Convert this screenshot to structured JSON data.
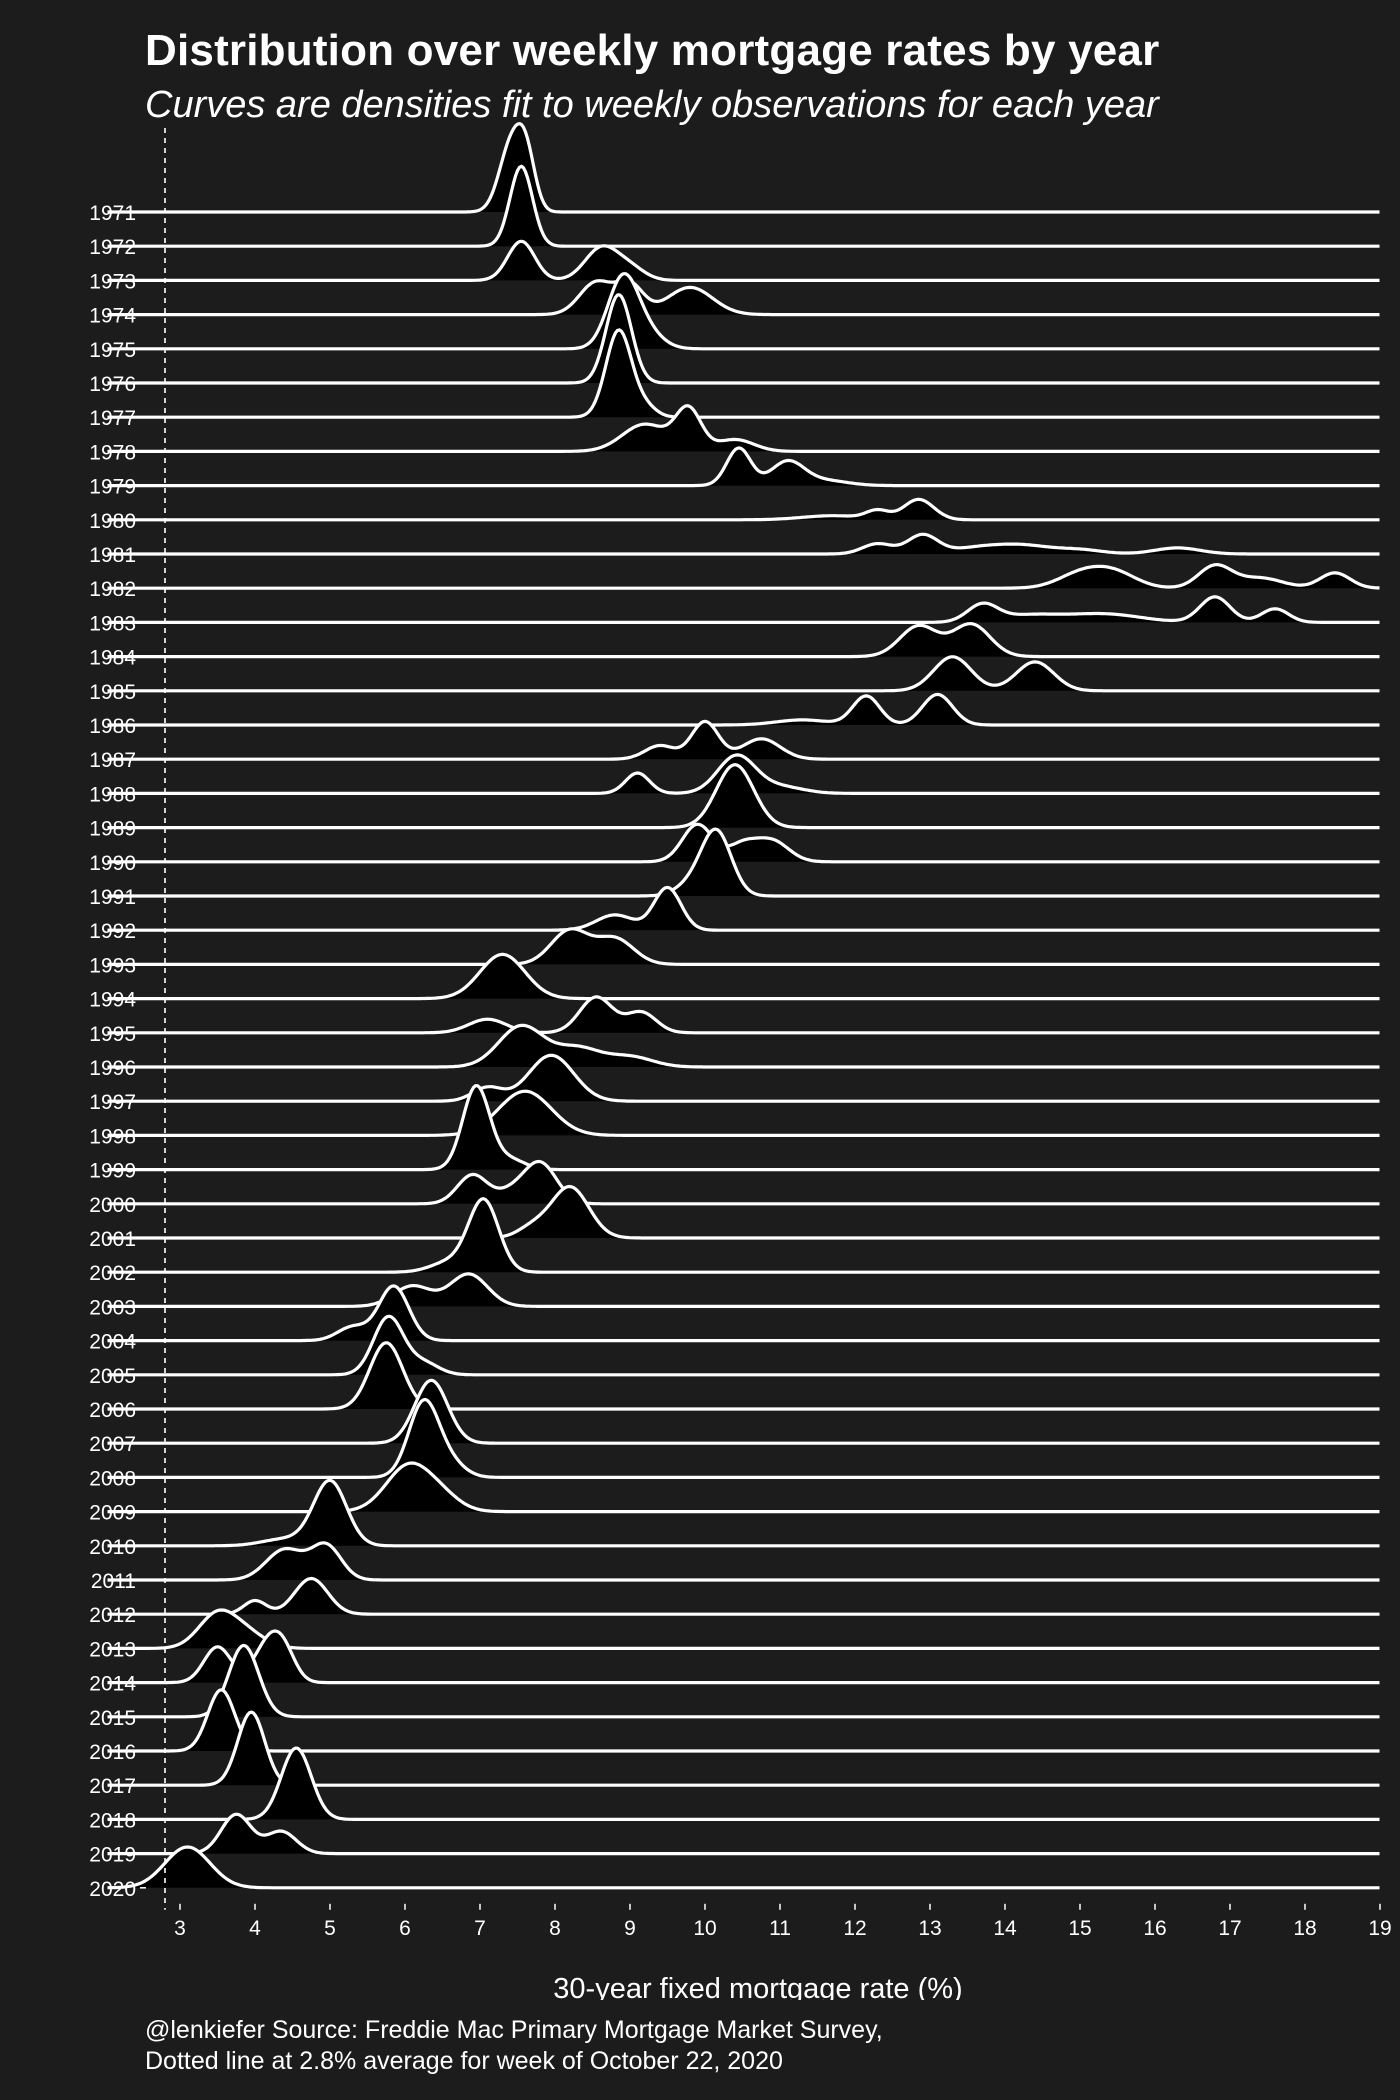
{
  "title": "Distribution over weekly mortgage rates by year",
  "subtitle": "Curves are densities fit to weekly observations for each year",
  "footer": {
    "line1": "@lenkiefer Source: Freddie Mac Primary Mortgage Market Survey,",
    "line2": "Dotted line at 2.8% average for week of October 22, 2020"
  },
  "colors": {
    "background": "#1c1c1c",
    "line": "#ffffff",
    "fill": "#000000"
  },
  "chart_data": {
    "type": "ridgeline",
    "xlabel": "30-year fixed mortgage rate (%)",
    "ylabel": "",
    "xlim": [
      2.5,
      19
    ],
    "xticks": [
      3,
      4,
      5,
      6,
      7,
      8,
      9,
      10,
      11,
      12,
      13,
      14,
      15,
      16,
      17,
      18,
      19
    ],
    "reference_line": {
      "x": 2.8,
      "style": "dotted"
    },
    "years": [
      "1971",
      "1972",
      "1973",
      "1974",
      "1975",
      "1976",
      "1977",
      "1978",
      "1979",
      "1980",
      "1981",
      "1982",
      "1983",
      "1984",
      "1985",
      "1986",
      "1987",
      "1988",
      "1989",
      "1990",
      "1991",
      "1992",
      "1993",
      "1994",
      "1995",
      "1996",
      "1997",
      "1998",
      "1999",
      "2000",
      "2001",
      "2002",
      "2003",
      "2004",
      "2005",
      "2006",
      "2007",
      "2008",
      "2009",
      "2010",
      "2011",
      "2012",
      "2013",
      "2014",
      "2015",
      "2016",
      "2017",
      "2018",
      "2019",
      "2020"
    ],
    "series": [
      {
        "year": "1971",
        "peaks": [
          {
            "center": 7.42,
            "sd": 0.16,
            "height": 2.0
          },
          {
            "center": 7.62,
            "sd": 0.12,
            "height": 1.35
          }
        ]
      },
      {
        "year": "1972",
        "peaks": [
          {
            "center": 7.55,
            "sd": 0.15,
            "height": 2.35
          }
        ]
      },
      {
        "year": "1973",
        "peaks": [
          {
            "center": 7.55,
            "sd": 0.18,
            "height": 1.15
          },
          {
            "center": 8.62,
            "sd": 0.22,
            "height": 0.95
          },
          {
            "center": 9.0,
            "sd": 0.2,
            "height": 0.35
          }
        ]
      },
      {
        "year": "1974",
        "peaks": [
          {
            "center": 8.55,
            "sd": 0.22,
            "height": 0.95
          },
          {
            "center": 9.0,
            "sd": 0.18,
            "height": 0.85
          },
          {
            "center": 9.8,
            "sd": 0.3,
            "height": 0.8
          }
        ]
      },
      {
        "year": "1975",
        "peaks": [
          {
            "center": 8.9,
            "sd": 0.2,
            "height": 2.0
          },
          {
            "center": 9.2,
            "sd": 0.22,
            "height": 0.5
          }
        ]
      },
      {
        "year": "1976",
        "peaks": [
          {
            "center": 8.85,
            "sd": 0.17,
            "height": 2.6
          }
        ]
      },
      {
        "year": "1977",
        "peaks": [
          {
            "center": 8.85,
            "sd": 0.17,
            "height": 2.55
          },
          {
            "center": 9.2,
            "sd": 0.15,
            "height": 0.3
          }
        ]
      },
      {
        "year": "1978",
        "peaks": [
          {
            "center": 9.2,
            "sd": 0.3,
            "height": 0.8
          },
          {
            "center": 9.78,
            "sd": 0.17,
            "height": 1.2
          },
          {
            "center": 10.4,
            "sd": 0.25,
            "height": 0.35
          }
        ]
      },
      {
        "year": "1979",
        "peaks": [
          {
            "center": 10.45,
            "sd": 0.16,
            "height": 1.1
          },
          {
            "center": 11.1,
            "sd": 0.22,
            "height": 0.7
          },
          {
            "center": 11.6,
            "sd": 0.3,
            "height": 0.15
          }
        ]
      },
      {
        "year": "1980",
        "peaks": [
          {
            "center": 12.3,
            "sd": 0.15,
            "height": 0.25
          },
          {
            "center": 12.85,
            "sd": 0.2,
            "height": 0.6
          },
          {
            "center": 11.7,
            "sd": 0.4,
            "height": 0.12
          }
        ]
      },
      {
        "year": "1981",
        "peaks": [
          {
            "center": 12.3,
            "sd": 0.2,
            "height": 0.3
          },
          {
            "center": 12.9,
            "sd": 0.2,
            "height": 0.55
          },
          {
            "center": 13.7,
            "sd": 0.4,
            "height": 0.2
          },
          {
            "center": 14.3,
            "sd": 0.35,
            "height": 0.2
          },
          {
            "center": 15.0,
            "sd": 0.3,
            "height": 0.12
          },
          {
            "center": 16.3,
            "sd": 0.3,
            "height": 0.18
          }
        ]
      },
      {
        "year": "1982",
        "peaks": [
          {
            "center": 15.0,
            "sd": 0.3,
            "height": 0.4
          },
          {
            "center": 15.45,
            "sd": 0.3,
            "height": 0.45
          },
          {
            "center": 16.8,
            "sd": 0.22,
            "height": 0.65
          },
          {
            "center": 17.4,
            "sd": 0.3,
            "height": 0.3
          },
          {
            "center": 18.4,
            "sd": 0.2,
            "height": 0.45
          }
        ]
      },
      {
        "year": "1983",
        "peaks": [
          {
            "center": 13.7,
            "sd": 0.2,
            "height": 0.5
          },
          {
            "center": 14.3,
            "sd": 0.4,
            "height": 0.2
          },
          {
            "center": 15.3,
            "sd": 0.5,
            "height": 0.25
          },
          {
            "center": 16.8,
            "sd": 0.2,
            "height": 0.75
          },
          {
            "center": 17.6,
            "sd": 0.18,
            "height": 0.4
          }
        ]
      },
      {
        "year": "1984",
        "peaks": [
          {
            "center": 12.85,
            "sd": 0.25,
            "height": 0.9
          },
          {
            "center": 13.55,
            "sd": 0.25,
            "height": 0.95
          }
        ]
      },
      {
        "year": "1985",
        "peaks": [
          {
            "center": 13.3,
            "sd": 0.25,
            "height": 1.0
          },
          {
            "center": 14.4,
            "sd": 0.25,
            "height": 0.85
          }
        ]
      },
      {
        "year": "1986",
        "peaks": [
          {
            "center": 11.3,
            "sd": 0.35,
            "height": 0.15
          },
          {
            "center": 12.15,
            "sd": 0.18,
            "height": 0.85
          },
          {
            "center": 13.1,
            "sd": 0.2,
            "height": 0.9
          }
        ]
      },
      {
        "year": "1987",
        "peaks": [
          {
            "center": 9.4,
            "sd": 0.2,
            "height": 0.4
          },
          {
            "center": 10.0,
            "sd": 0.18,
            "height": 1.1
          },
          {
            "center": 10.75,
            "sd": 0.25,
            "height": 0.6
          }
        ]
      },
      {
        "year": "1988",
        "peaks": [
          {
            "center": 9.1,
            "sd": 0.16,
            "height": 0.6
          },
          {
            "center": 10.42,
            "sd": 0.25,
            "height": 1.1
          },
          {
            "center": 11.0,
            "sd": 0.3,
            "height": 0.2
          }
        ]
      },
      {
        "year": "1989",
        "peaks": [
          {
            "center": 10.4,
            "sd": 0.25,
            "height": 1.85
          }
        ]
      },
      {
        "year": "1990",
        "peaks": [
          {
            "center": 9.9,
            "sd": 0.2,
            "height": 1.1
          },
          {
            "center": 10.5,
            "sd": 0.2,
            "height": 0.5
          },
          {
            "center": 10.9,
            "sd": 0.22,
            "height": 0.6
          }
        ]
      },
      {
        "year": "1991",
        "peaks": [
          {
            "center": 10.15,
            "sd": 0.2,
            "height": 1.9
          },
          {
            "center": 9.8,
            "sd": 0.2,
            "height": 0.3
          }
        ]
      },
      {
        "year": "1992",
        "peaks": [
          {
            "center": 8.8,
            "sd": 0.25,
            "height": 0.45
          },
          {
            "center": 9.5,
            "sd": 0.18,
            "height": 1.25
          }
        ]
      },
      {
        "year": "1993",
        "peaks": [
          {
            "center": 8.2,
            "sd": 0.25,
            "height": 1.0
          },
          {
            "center": 8.8,
            "sd": 0.25,
            "height": 0.75
          }
        ]
      },
      {
        "year": "1994",
        "peaks": [
          {
            "center": 7.3,
            "sd": 0.3,
            "height": 1.3
          }
        ]
      },
      {
        "year": "1995",
        "peaks": [
          {
            "center": 7.1,
            "sd": 0.25,
            "height": 0.4
          },
          {
            "center": 8.55,
            "sd": 0.22,
            "height": 1.05
          },
          {
            "center": 9.15,
            "sd": 0.2,
            "height": 0.6
          }
        ]
      },
      {
        "year": "1996",
        "peaks": [
          {
            "center": 7.55,
            "sd": 0.3,
            "height": 1.2
          },
          {
            "center": 8.3,
            "sd": 0.3,
            "height": 0.55
          },
          {
            "center": 9.0,
            "sd": 0.3,
            "height": 0.3
          }
        ]
      },
      {
        "year": "1997",
        "peaks": [
          {
            "center": 7.1,
            "sd": 0.2,
            "height": 0.4
          },
          {
            "center": 7.95,
            "sd": 0.3,
            "height": 1.35
          }
        ]
      },
      {
        "year": "1998",
        "peaks": [
          {
            "center": 7.6,
            "sd": 0.35,
            "height": 1.3
          }
        ]
      },
      {
        "year": "1999",
        "peaks": [
          {
            "center": 6.95,
            "sd": 0.18,
            "height": 2.45
          },
          {
            "center": 7.4,
            "sd": 0.2,
            "height": 0.3
          }
        ]
      },
      {
        "year": "2000",
        "peaks": [
          {
            "center": 6.9,
            "sd": 0.2,
            "height": 0.85
          },
          {
            "center": 7.8,
            "sd": 0.22,
            "height": 1.2
          },
          {
            "center": 7.4,
            "sd": 0.2,
            "height": 0.3
          }
        ]
      },
      {
        "year": "2001",
        "peaks": [
          {
            "center": 8.2,
            "sd": 0.25,
            "height": 1.5
          },
          {
            "center": 7.7,
            "sd": 0.2,
            "height": 0.3
          }
        ]
      },
      {
        "year": "2002",
        "peaks": [
          {
            "center": 7.05,
            "sd": 0.2,
            "height": 2.1
          },
          {
            "center": 6.6,
            "sd": 0.25,
            "height": 0.3
          }
        ]
      },
      {
        "year": "2003",
        "peaks": [
          {
            "center": 6.1,
            "sd": 0.25,
            "height": 0.6
          },
          {
            "center": 6.85,
            "sd": 0.25,
            "height": 0.95
          }
        ]
      },
      {
        "year": "2004",
        "peaks": [
          {
            "center": 5.3,
            "sd": 0.2,
            "height": 0.4
          },
          {
            "center": 5.85,
            "sd": 0.2,
            "height": 1.6
          }
        ]
      },
      {
        "year": "2005",
        "peaks": [
          {
            "center": 5.78,
            "sd": 0.2,
            "height": 1.7
          },
          {
            "center": 6.25,
            "sd": 0.2,
            "height": 0.35
          }
        ]
      },
      {
        "year": "2006",
        "peaks": [
          {
            "center": 5.75,
            "sd": 0.22,
            "height": 1.95
          }
        ]
      },
      {
        "year": "2007",
        "peaks": [
          {
            "center": 6.35,
            "sd": 0.22,
            "height": 1.85
          }
        ]
      },
      {
        "year": "2008",
        "peaks": [
          {
            "center": 6.25,
            "sd": 0.2,
            "height": 2.2
          },
          {
            "center": 6.6,
            "sd": 0.2,
            "height": 0.4
          }
        ]
      },
      {
        "year": "2009",
        "peaks": [
          {
            "center": 6.05,
            "sd": 0.3,
            "height": 1.35
          },
          {
            "center": 6.5,
            "sd": 0.25,
            "height": 0.35
          }
        ]
      },
      {
        "year": "2010",
        "peaks": [
          {
            "center": 5.0,
            "sd": 0.22,
            "height": 1.9
          },
          {
            "center": 4.4,
            "sd": 0.3,
            "height": 0.2
          }
        ]
      },
      {
        "year": "2011",
        "peaks": [
          {
            "center": 4.4,
            "sd": 0.25,
            "height": 0.9
          },
          {
            "center": 4.95,
            "sd": 0.2,
            "height": 1.0
          }
        ]
      },
      {
        "year": "2012",
        "peaks": [
          {
            "center": 4.0,
            "sd": 0.15,
            "height": 0.4
          },
          {
            "center": 4.75,
            "sd": 0.22,
            "height": 1.05
          }
        ]
      },
      {
        "year": "2013",
        "peaks": [
          {
            "center": 3.5,
            "sd": 0.25,
            "height": 1.0
          },
          {
            "center": 3.9,
            "sd": 0.25,
            "height": 0.4
          }
        ]
      },
      {
        "year": "2014",
        "peaks": [
          {
            "center": 3.5,
            "sd": 0.18,
            "height": 1.05
          },
          {
            "center": 4.2,
            "sd": 0.2,
            "height": 1.25
          },
          {
            "center": 4.4,
            "sd": 0.15,
            "height": 0.5
          }
        ]
      },
      {
        "year": "2015",
        "peaks": [
          {
            "center": 3.85,
            "sd": 0.2,
            "height": 2.1
          }
        ]
      },
      {
        "year": "2016",
        "peaks": [
          {
            "center": 3.55,
            "sd": 0.18,
            "height": 1.8
          }
        ]
      },
      {
        "year": "2017",
        "peaks": [
          {
            "center": 3.95,
            "sd": 0.18,
            "height": 2.15
          }
        ]
      },
      {
        "year": "2018",
        "peaks": [
          {
            "center": 4.55,
            "sd": 0.2,
            "height": 2.1
          }
        ]
      },
      {
        "year": "2019",
        "peaks": [
          {
            "center": 3.75,
            "sd": 0.2,
            "height": 1.15
          },
          {
            "center": 4.35,
            "sd": 0.2,
            "height": 0.65
          }
        ]
      },
      {
        "year": "2020",
        "peaks": [
          {
            "center": 3.1,
            "sd": 0.3,
            "height": 1.2
          }
        ]
      }
    ]
  }
}
